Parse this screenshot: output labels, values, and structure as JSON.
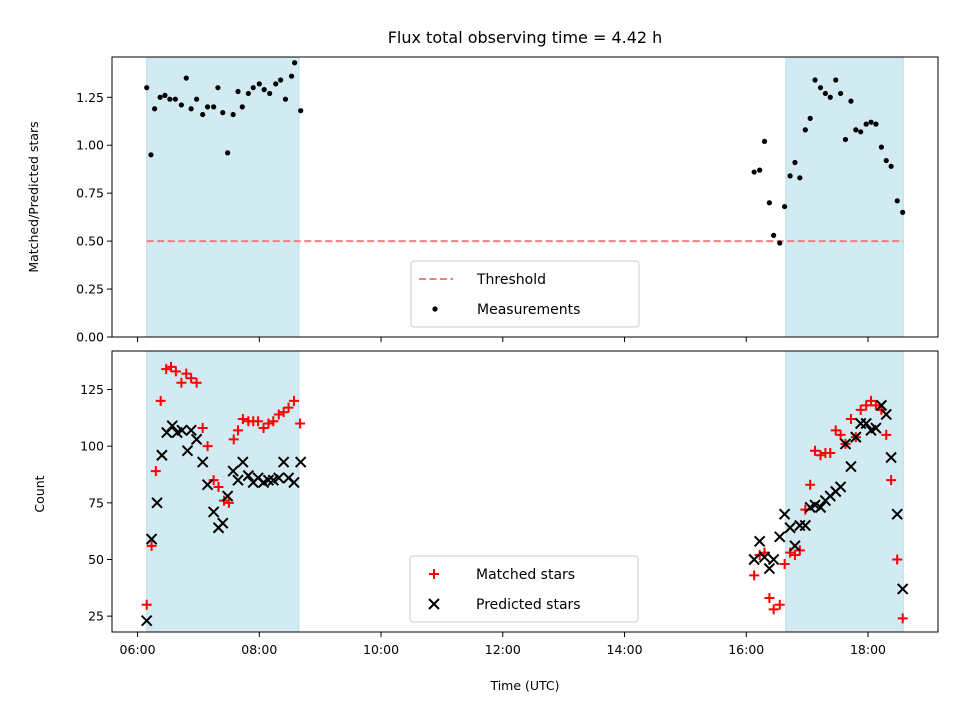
{
  "chart_data": {
    "type": "scatter",
    "title": "Flux total observing time = 4.42 h",
    "xlabel": "Time (UTC)",
    "xlim": [
      5.58,
      19.15
    ],
    "xticks": [
      6,
      8,
      10,
      12,
      14,
      16,
      18
    ],
    "xtick_labels": [
      "06:00",
      "08:00",
      "10:00",
      "12:00",
      "14:00",
      "16:00",
      "18:00"
    ],
    "shaded_intervals": [
      [
        6.15,
        8.65
      ],
      [
        16.65,
        18.58
      ]
    ],
    "shade_color": "#add8e6",
    "panels": [
      {
        "ylabel": "Matched/Predicted stars",
        "ylim": [
          0,
          1.46
        ],
        "yticks": [
          0,
          0.25,
          0.5,
          0.75,
          1.0,
          1.25
        ],
        "ytick_labels": [
          "0.00",
          "0.25",
          "0.50",
          "0.75",
          "1.00",
          "1.25"
        ],
        "legend_position": "bottom-center",
        "threshold": {
          "name": "Threshold",
          "y": 0.5,
          "x_range": [
            6.15,
            18.58
          ],
          "color": "#f08080"
        },
        "series": [
          {
            "name": "Measurements",
            "marker": "dot",
            "color": "#000000",
            "points": [
              [
                6.15,
                1.3
              ],
              [
                6.22,
                0.95
              ],
              [
                6.28,
                1.19
              ],
              [
                6.37,
                1.25
              ],
              [
                6.45,
                1.26
              ],
              [
                6.53,
                1.24
              ],
              [
                6.62,
                1.24
              ],
              [
                6.72,
                1.21
              ],
              [
                6.8,
                1.35
              ],
              [
                6.88,
                1.19
              ],
              [
                6.97,
                1.24
              ],
              [
                7.07,
                1.16
              ],
              [
                7.15,
                1.2
              ],
              [
                7.25,
                1.2
              ],
              [
                7.32,
                1.3
              ],
              [
                7.4,
                1.17
              ],
              [
                7.48,
                0.96
              ],
              [
                7.57,
                1.16
              ],
              [
                7.65,
                1.28
              ],
              [
                7.72,
                1.2
              ],
              [
                7.82,
                1.27
              ],
              [
                7.9,
                1.3
              ],
              [
                8.0,
                1.32
              ],
              [
                8.08,
                1.29
              ],
              [
                8.17,
                1.27
              ],
              [
                8.27,
                1.32
              ],
              [
                8.35,
                1.34
              ],
              [
                8.43,
                1.24
              ],
              [
                8.53,
                1.36
              ],
              [
                8.58,
                1.43
              ],
              [
                8.68,
                1.18
              ],
              [
                16.13,
                0.86
              ],
              [
                16.22,
                0.87
              ],
              [
                16.3,
                1.02
              ],
              [
                16.38,
                0.7
              ],
              [
                16.45,
                0.53
              ],
              [
                16.55,
                0.49
              ],
              [
                16.63,
                0.68
              ],
              [
                16.72,
                0.84
              ],
              [
                16.8,
                0.91
              ],
              [
                16.88,
                0.83
              ],
              [
                16.97,
                1.08
              ],
              [
                17.05,
                1.14
              ],
              [
                17.13,
                1.34
              ],
              [
                17.22,
                1.3
              ],
              [
                17.3,
                1.27
              ],
              [
                17.38,
                1.25
              ],
              [
                17.47,
                1.34
              ],
              [
                17.55,
                1.27
              ],
              [
                17.63,
                1.03
              ],
              [
                17.72,
                1.23
              ],
              [
                17.8,
                1.08
              ],
              [
                17.88,
                1.07
              ],
              [
                17.97,
                1.11
              ],
              [
                18.05,
                1.12
              ],
              [
                18.13,
                1.11
              ],
              [
                18.22,
                0.99
              ],
              [
                18.3,
                0.92
              ],
              [
                18.38,
                0.89
              ],
              [
                18.48,
                0.71
              ],
              [
                18.57,
                0.65
              ]
            ]
          }
        ]
      },
      {
        "ylabel": "Count",
        "ylim": [
          18,
          142
        ],
        "yticks": [
          25,
          50,
          75,
          100,
          125
        ],
        "ytick_labels": [
          "25",
          "50",
          "75",
          "100",
          "125"
        ],
        "legend_position": "bottom-center",
        "series": [
          {
            "name": "Matched stars",
            "marker": "plus",
            "color": "#ff0000",
            "points": [
              [
                6.15,
                30
              ],
              [
                6.23,
                56
              ],
              [
                6.3,
                89
              ],
              [
                6.38,
                120
              ],
              [
                6.47,
                134
              ],
              [
                6.55,
                135
              ],
              [
                6.63,
                133
              ],
              [
                6.72,
                128
              ],
              [
                6.8,
                132
              ],
              [
                6.88,
                130
              ],
              [
                6.97,
                128
              ],
              [
                7.07,
                108
              ],
              [
                7.15,
                100
              ],
              [
                7.25,
                85
              ],
              [
                7.33,
                82
              ],
              [
                7.42,
                76
              ],
              [
                7.5,
                75
              ],
              [
                7.58,
                103
              ],
              [
                7.65,
                107
              ],
              [
                7.73,
                112
              ],
              [
                7.82,
                111
              ],
              [
                7.9,
                111
              ],
              [
                7.98,
                111
              ],
              [
                8.07,
                108
              ],
              [
                8.15,
                110
              ],
              [
                8.23,
                111
              ],
              [
                8.32,
                114
              ],
              [
                8.4,
                115
              ],
              [
                8.48,
                117
              ],
              [
                8.57,
                120
              ],
              [
                8.67,
                110
              ],
              [
                16.13,
                43
              ],
              [
                16.22,
                52
              ],
              [
                16.3,
                53
              ],
              [
                16.38,
                33
              ],
              [
                16.45,
                28
              ],
              [
                16.55,
                30
              ],
              [
                16.63,
                48
              ],
              [
                16.72,
                53
              ],
              [
                16.8,
                52
              ],
              [
                16.88,
                54
              ],
              [
                16.97,
                72
              ],
              [
                17.05,
                83
              ],
              [
                17.13,
                98
              ],
              [
                17.22,
                96
              ],
              [
                17.3,
                97
              ],
              [
                17.38,
                97
              ],
              [
                17.47,
                107
              ],
              [
                17.55,
                105
              ],
              [
                17.63,
                101
              ],
              [
                17.72,
                112
              ],
              [
                17.8,
                104
              ],
              [
                17.88,
                116
              ],
              [
                17.97,
                118
              ],
              [
                18.05,
                120
              ],
              [
                18.13,
                118
              ],
              [
                18.22,
                116
              ],
              [
                18.3,
                105
              ],
              [
                18.38,
                85
              ],
              [
                18.48,
                50
              ],
              [
                18.57,
                24
              ]
            ]
          },
          {
            "name": "Predicted stars",
            "marker": "x",
            "color": "#000000",
            "points": [
              [
                6.15,
                23
              ],
              [
                6.23,
                59
              ],
              [
                6.32,
                75
              ],
              [
                6.4,
                96
              ],
              [
                6.48,
                106
              ],
              [
                6.57,
                109
              ],
              [
                6.65,
                106
              ],
              [
                6.73,
                107
              ],
              [
                6.82,
                98
              ],
              [
                6.88,
                107
              ],
              [
                6.97,
                103
              ],
              [
                7.07,
                93
              ],
              [
                7.15,
                83
              ],
              [
                7.25,
                71
              ],
              [
                7.33,
                64
              ],
              [
                7.4,
                66
              ],
              [
                7.48,
                78
              ],
              [
                7.57,
                89
              ],
              [
                7.65,
                85
              ],
              [
                7.73,
                93
              ],
              [
                7.82,
                87
              ],
              [
                7.9,
                84
              ],
              [
                7.98,
                86
              ],
              [
                8.07,
                84
              ],
              [
                8.15,
                85
              ],
              [
                8.23,
                85
              ],
              [
                8.32,
                86
              ],
              [
                8.4,
                93
              ],
              [
                8.48,
                86
              ],
              [
                8.57,
                84
              ],
              [
                8.68,
                93
              ],
              [
                16.13,
                50
              ],
              [
                16.22,
                58
              ],
              [
                16.3,
                51
              ],
              [
                16.38,
                46
              ],
              [
                16.45,
                50
              ],
              [
                16.55,
                60
              ],
              [
                16.63,
                70
              ],
              [
                16.72,
                64
              ],
              [
                16.8,
                56
              ],
              [
                16.88,
                65
              ],
              [
                16.97,
                65
              ],
              [
                17.05,
                73
              ],
              [
                17.13,
                74
              ],
              [
                17.22,
                73
              ],
              [
                17.3,
                76
              ],
              [
                17.38,
                78
              ],
              [
                17.47,
                80
              ],
              [
                17.55,
                82
              ],
              [
                17.63,
                101
              ],
              [
                17.72,
                91
              ],
              [
                17.8,
                104
              ],
              [
                17.88,
                110
              ],
              [
                17.97,
                110
              ],
              [
                18.05,
                107
              ],
              [
                18.13,
                108
              ],
              [
                18.22,
                118
              ],
              [
                18.3,
                114
              ],
              [
                18.38,
                95
              ],
              [
                18.48,
                70
              ],
              [
                18.57,
                37
              ]
            ]
          }
        ]
      }
    ]
  }
}
